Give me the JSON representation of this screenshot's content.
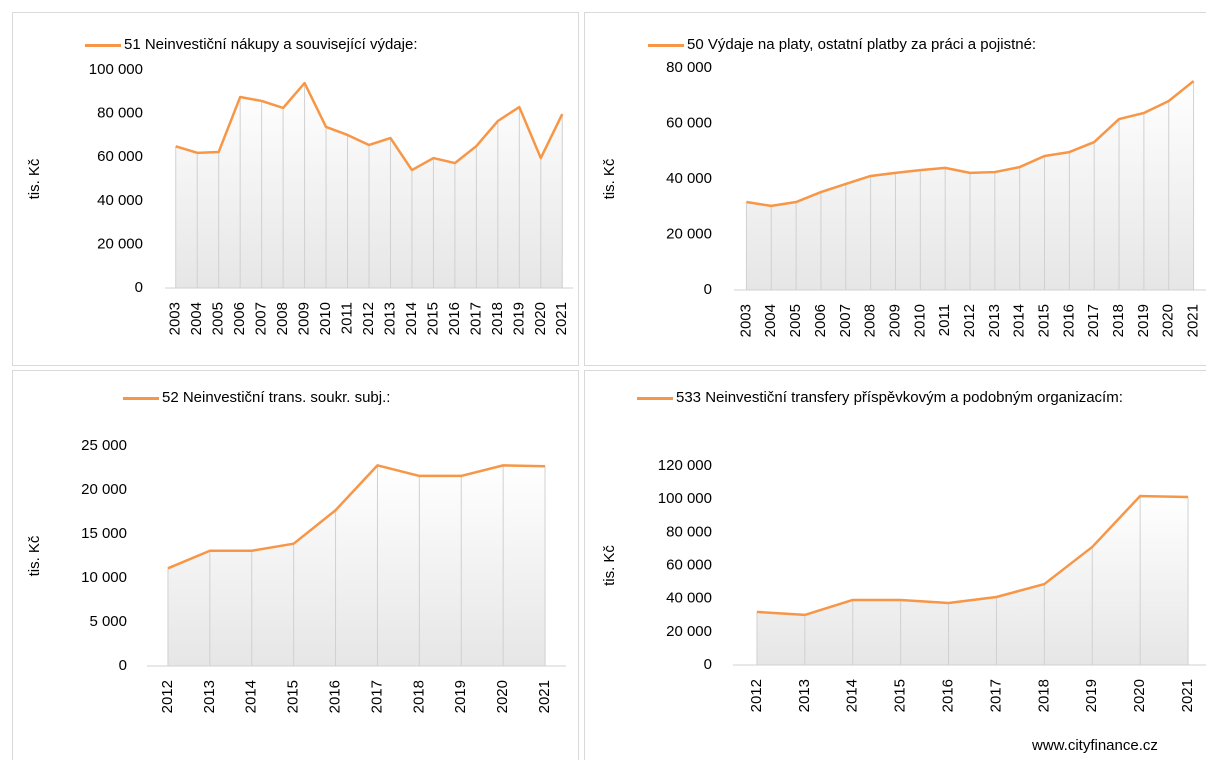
{
  "chart_data": [
    {
      "type": "line",
      "y_label": "tis. Kč",
      "categories": [
        "2003",
        "2004",
        "2005",
        "2006",
        "2007",
        "2008",
        "2009",
        "2010",
        "2011",
        "2012",
        "2013",
        "2014",
        "2015",
        "2016",
        "2017",
        "2018",
        "2019",
        "2020",
        "2021"
      ],
      "series": [
        {
          "name": "51 Neinvestiční nákupy a související výdaje:",
          "color": "#f79646",
          "values": [
            65000,
            62000,
            62400,
            87600,
            85800,
            82600,
            94000,
            73900,
            70200,
            65600,
            68800,
            54100,
            59600,
            57300,
            65100,
            76600,
            83000,
            59600,
            79800
          ]
        }
      ],
      "ylim": [
        0,
        100000
      ],
      "yticks": [
        0,
        {
          "value": 20000,
          "label": "20 000"
        },
        {
          "value": 40000,
          "label": "40 000"
        },
        {
          "value": 60000,
          "label": "60 000"
        },
        {
          "value": 80000,
          "label": "80 000"
        },
        {
          "value": 100000,
          "label": "100 000"
        }
      ]
    },
    {
      "type": "line",
      "y_label": "tis. Kč",
      "categories": [
        "2003",
        "2004",
        "2005",
        "2006",
        "2007",
        "2008",
        "2009",
        "2010",
        "2011",
        "2012",
        "2013",
        "2014",
        "2015",
        "2016",
        "2017",
        "2018",
        "2019",
        "2020",
        "2021"
      ],
      "series": [
        {
          "name": "50 Výdaje na platy, ostatní platby za práci a pojistné:",
          "color": "#f79646",
          "values": [
            31700,
            30300,
            31700,
            35300,
            38200,
            41100,
            42200,
            43200,
            44000,
            42200,
            42500,
            44300,
            48300,
            49700,
            53300,
            61600,
            63800,
            68100,
            75300
          ]
        }
      ],
      "ylim": [
        0,
        80000
      ],
      "yticks": [
        0,
        {
          "value": 20000,
          "label": "20 000"
        },
        {
          "value": 40000,
          "label": "40 000"
        },
        {
          "value": 60000,
          "label": "60 000"
        },
        {
          "value": 80000,
          "label": "80 000"
        }
      ]
    },
    {
      "type": "line",
      "y_label": "tis. Kč",
      "categories": [
        "2012",
        "2013",
        "2014",
        "2015",
        "2016",
        "2017",
        "2018",
        "2019",
        "2020",
        "2021"
      ],
      "series": [
        {
          "name": "52 Neinvestiční trans. soukr. subj.:",
          "color": "#f79646",
          "values": [
            11100,
            13100,
            13100,
            13900,
            17700,
            22800,
            21600,
            21600,
            22800,
            22700
          ]
        }
      ],
      "ylim": [
        0,
        25000
      ],
      "yticks": [
        0,
        {
          "value": 5000,
          "label": "5 000"
        },
        {
          "value": 10000,
          "label": "10 000"
        },
        {
          "value": 15000,
          "label": "15 000"
        },
        {
          "value": 20000,
          "label": "20 000"
        },
        {
          "value": 25000,
          "label": "25 000"
        }
      ]
    },
    {
      "type": "line",
      "y_label": "tis. Kč",
      "categories": [
        "2012",
        "2013",
        "2014",
        "2015",
        "2016",
        "2017",
        "2018",
        "2019",
        "2020",
        "2021"
      ],
      "series": [
        {
          "name": "533 Neinvestiční transfery příspěvkovým a podobným organizacím:",
          "color": "#f79646",
          "values": [
            32000,
            30200,
            39200,
            39200,
            37400,
            41000,
            48800,
            71200,
            101900,
            101300
          ]
        }
      ],
      "ylim": [
        0,
        120000
      ],
      "yticks": [
        0,
        {
          "value": 20000,
          "label": "20 000"
        },
        {
          "value": 40000,
          "label": "40 000"
        },
        {
          "value": 60000,
          "label": "60 000"
        },
        {
          "value": 80000,
          "label": "80 000"
        },
        {
          "value": 100000,
          "label": "100 000"
        },
        {
          "value": 120000,
          "label": "120 000"
        }
      ]
    }
  ],
  "footer": "www.cityfinance.cz"
}
